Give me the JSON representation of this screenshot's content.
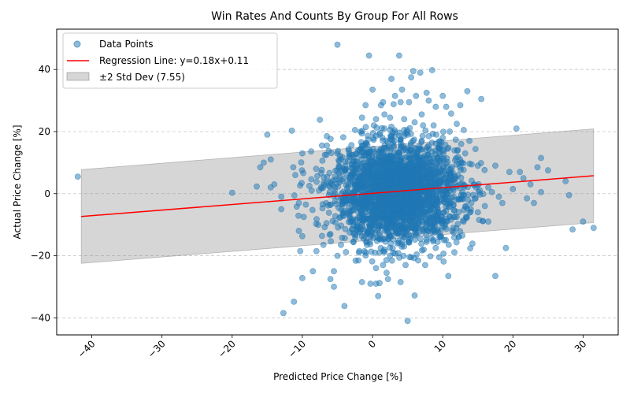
{
  "chart_data": {
    "type": "scatter",
    "title": "Win Rates And Counts By Group For All Rows",
    "xlabel": "Predicted Price Change [%]",
    "ylabel": "Actual Price Change [%]",
    "xlim": [
      -45,
      35
    ],
    "ylim": [
      -45.5,
      53
    ],
    "xticks": [
      -40,
      -30,
      -20,
      -10,
      0,
      10,
      20,
      30
    ],
    "xtick_labels": [
      "−40",
      "−30",
      "−20",
      "−10",
      "0",
      "10",
      "20",
      "30"
    ],
    "yticks": [
      -40,
      -20,
      0,
      20,
      40
    ],
    "ytick_labels": [
      "−40",
      "−20",
      "0",
      "20",
      "40"
    ],
    "grid": {
      "x": false,
      "y": true,
      "style": "dashed"
    },
    "legend_position": "upper-left",
    "series": [
      {
        "name": "Data Points",
        "kind": "scatter",
        "color": "#1f77b4",
        "opacity": 0.5,
        "points": [
          [
            -42,
            5.5
          ],
          [
            -20,
            0.3
          ],
          [
            -16.5,
            2.3
          ],
          [
            -16,
            8.5
          ],
          [
            -15.5,
            10
          ],
          [
            -15,
            19
          ],
          [
            -14.5,
            11
          ],
          [
            -14.5,
            2
          ],
          [
            -14,
            3
          ],
          [
            -13,
            -1
          ],
          [
            -13,
            -5
          ],
          [
            -12.7,
            -38.5
          ],
          [
            -11.5,
            20.3
          ],
          [
            -11.3,
            8.5
          ],
          [
            -11.2,
            -34.8
          ],
          [
            -11,
            6
          ],
          [
            -10.8,
            -4.2
          ],
          [
            -10.5,
            -3
          ],
          [
            -10.5,
            -12
          ],
          [
            -10.3,
            -18.5
          ],
          [
            -10,
            -27.2
          ],
          [
            -10,
            -13.7
          ],
          [
            -10,
            13
          ],
          [
            -9.8,
            -7.5
          ],
          [
            -9.5,
            -3.5
          ],
          [
            -9,
            2.5
          ],
          [
            -8.5,
            -25
          ],
          [
            -8,
            -18.5
          ],
          [
            -7.5,
            23.8
          ],
          [
            -7.2,
            15.5
          ],
          [
            -7,
            -16.5
          ],
          [
            -6.8,
            12.5
          ],
          [
            -6.5,
            18.5
          ],
          [
            -6.5,
            15.5
          ],
          [
            -6,
            -27.5
          ],
          [
            -6,
            -13
          ],
          [
            -5.5,
            -25
          ],
          [
            -5.5,
            -30
          ],
          [
            -5,
            48
          ],
          [
            -5,
            13
          ],
          [
            -5,
            -20
          ],
          [
            -4.5,
            -16.5
          ],
          [
            -4,
            -36.2
          ],
          [
            -4,
            7.5
          ],
          [
            -3.5,
            10.5
          ],
          [
            -3,
            12.5
          ],
          [
            -2.5,
            20.5
          ],
          [
            -2,
            -21.5
          ],
          [
            -1.7,
            20
          ],
          [
            -1.5,
            24.5
          ],
          [
            -1.5,
            -28.5
          ],
          [
            -1,
            28.5
          ],
          [
            -1,
            -19
          ],
          [
            -0.8,
            -16.5
          ],
          [
            -0.5,
            44.5
          ],
          [
            -0.3,
            -29
          ],
          [
            0,
            33.5
          ],
          [
            0.2,
            22
          ],
          [
            0.5,
            24
          ],
          [
            0.5,
            -24
          ],
          [
            0.5,
            -29
          ],
          [
            0.8,
            -33
          ],
          [
            1,
            19
          ],
          [
            1,
            -19
          ],
          [
            1,
            -28.8
          ],
          [
            1.2,
            28.5
          ],
          [
            1.5,
            29.5
          ],
          [
            1.5,
            -23
          ],
          [
            1.7,
            25.5
          ],
          [
            2,
            -25.5
          ],
          [
            2.2,
            -27.5
          ],
          [
            2.5,
            20.5
          ],
          [
            2.5,
            24.5
          ],
          [
            2.5,
            -20
          ],
          [
            2.7,
            37
          ],
          [
            3,
            15.5
          ],
          [
            3,
            28.8
          ],
          [
            3.2,
            31.5
          ],
          [
            3.5,
            -16
          ],
          [
            3.8,
            44.5
          ],
          [
            4,
            29.5
          ],
          [
            4,
            -28.5
          ],
          [
            4.2,
            33.5
          ],
          [
            4.5,
            20.5
          ],
          [
            4.5,
            24
          ],
          [
            4.5,
            -17
          ],
          [
            4.7,
            -23
          ],
          [
            5,
            -41
          ],
          [
            5,
            19
          ],
          [
            5.2,
            29.5
          ],
          [
            5.5,
            37.5
          ],
          [
            5.5,
            -20.5
          ],
          [
            5.8,
            39.5
          ],
          [
            6,
            -32.8
          ],
          [
            6,
            23
          ],
          [
            6.2,
            31.5
          ],
          [
            6.5,
            -21.5
          ],
          [
            6.8,
            39
          ],
          [
            7,
            25.5
          ],
          [
            7,
            17
          ],
          [
            7.2,
            22
          ],
          [
            7.5,
            -23
          ],
          [
            7.7,
            32.5
          ],
          [
            8,
            30
          ],
          [
            8,
            18.5
          ],
          [
            8.5,
            39.8
          ],
          [
            8.7,
            22
          ],
          [
            9,
            28
          ],
          [
            9,
            -17.5
          ],
          [
            9.5,
            -20.5
          ],
          [
            9.7,
            -12
          ],
          [
            10,
            31.5
          ],
          [
            10,
            18
          ],
          [
            10.2,
            -15
          ],
          [
            10.5,
            28
          ],
          [
            10.8,
            -26.5
          ],
          [
            11,
            20
          ],
          [
            11.2,
            25.8
          ],
          [
            11.5,
            -11
          ],
          [
            12,
            22.5
          ],
          [
            12,
            -7.5
          ],
          [
            12.5,
            28.5
          ],
          [
            12.8,
            -13.5
          ],
          [
            13,
            20.5
          ],
          [
            13.2,
            13
          ],
          [
            13.5,
            33
          ],
          [
            13.8,
            17
          ],
          [
            14,
            -5
          ],
          [
            14.5,
            3
          ],
          [
            15,
            9
          ],
          [
            15,
            -6
          ],
          [
            15.5,
            30.5
          ],
          [
            16,
            -4
          ],
          [
            16.5,
            2
          ],
          [
            16.5,
            -9
          ],
          [
            17,
            0.5
          ],
          [
            17.5,
            9
          ],
          [
            17.5,
            -26.5
          ],
          [
            18,
            -1
          ],
          [
            18.5,
            -3
          ],
          [
            19,
            -17.5
          ],
          [
            19.5,
            7
          ],
          [
            20,
            1.5
          ],
          [
            20.5,
            21
          ],
          [
            21,
            7
          ],
          [
            21.5,
            5
          ],
          [
            22,
            -1.5
          ],
          [
            22.5,
            3
          ],
          [
            23,
            -3
          ],
          [
            23.5,
            8.5
          ],
          [
            24,
            11.5
          ],
          [
            24,
            0.5
          ],
          [
            25,
            7.5
          ],
          [
            27.5,
            4
          ],
          [
            28,
            -0.5
          ],
          [
            28.5,
            -11.5
          ],
          [
            30,
            -9
          ],
          [
            31.5,
            -11
          ]
        ],
        "dense_cluster": {
          "center": [
            3.5,
            0.5
          ],
          "std_x": 4.5,
          "std_y": 8,
          "approx_count": 2500
        }
      },
      {
        "name": "Regression Line: y=0.18x+0.11",
        "kind": "line",
        "color": "#ff0000",
        "slope": 0.18,
        "intercept": 0.11,
        "x_range": [
          -41.5,
          31.5
        ]
      },
      {
        "name": "±2 Std Dev (7.55)",
        "kind": "band",
        "color": "#808080",
        "opacity": 0.32,
        "std_dev": 7.55,
        "multiplier": 2
      }
    ]
  }
}
